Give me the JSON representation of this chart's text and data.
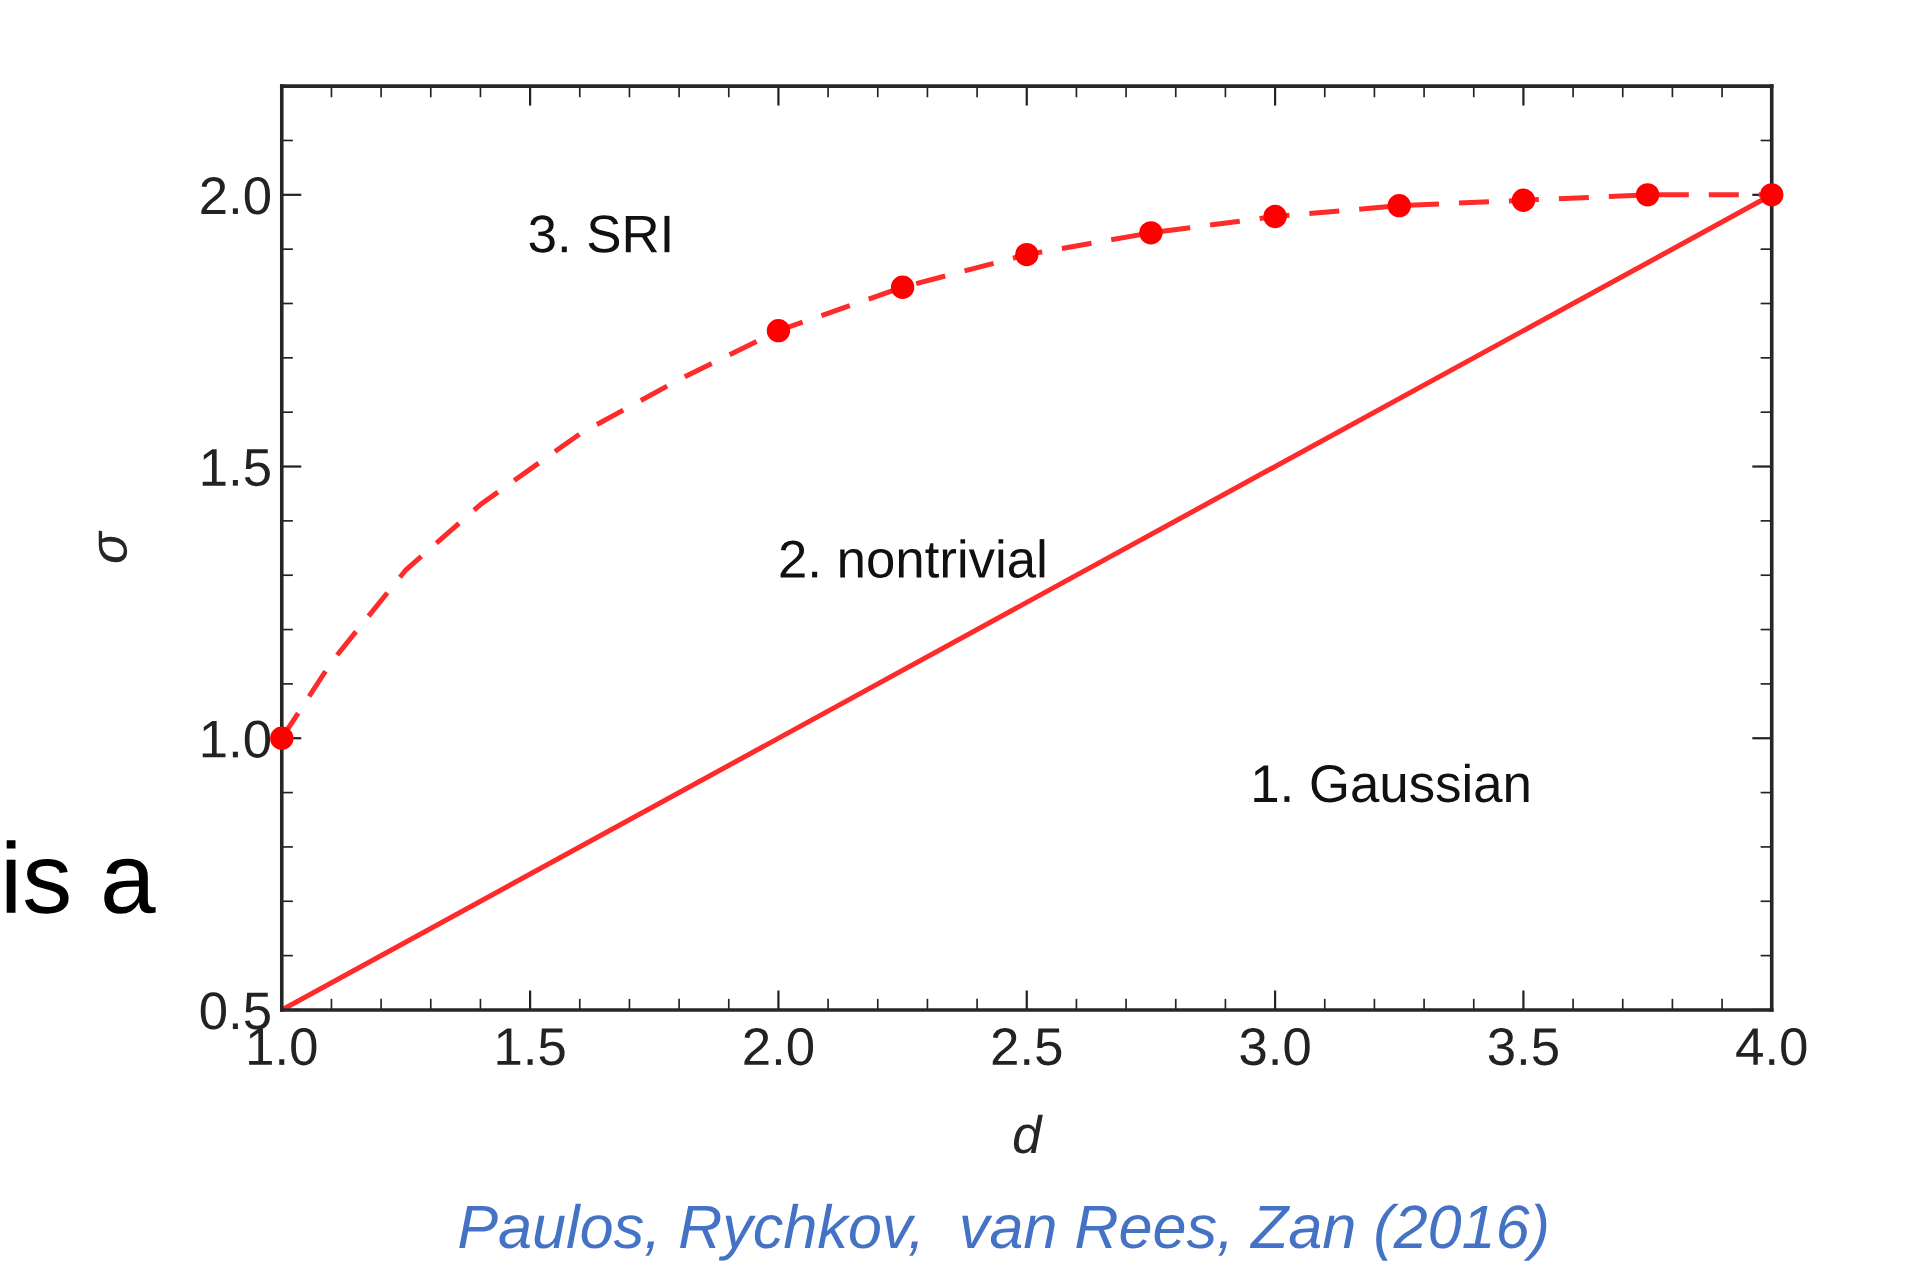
{
  "chart_data": {
    "type": "line",
    "xlabel": "d",
    "ylabel": "σ",
    "xlim": [
      1.0,
      4.0
    ],
    "ylim": [
      0.5,
      2.2
    ],
    "xticks": [
      {
        "value": 1.0,
        "label": "1.0"
      },
      1.5,
      {
        "value": 2.0,
        "label": "2.0"
      },
      2.5,
      {
        "value": 3.0,
        "label": "3.0"
      },
      3.5,
      {
        "value": 4.0,
        "label": "4.0"
      }
    ],
    "yticks": [
      0.5,
      {
        "value": 1.0,
        "label": "1.0"
      },
      1.5,
      {
        "value": 2.0,
        "label": "2.0"
      }
    ],
    "grid": false,
    "legend": false,
    "series": [
      {
        "line_style": "dashed",
        "marker": "none",
        "color": "#ff2a2a",
        "x": [
          1.0,
          1.1,
          1.25,
          1.4,
          1.6,
          1.8,
          2.0,
          2.25,
          2.5,
          2.75,
          3.0,
          3.25,
          3.5,
          3.75,
          4.0
        ],
        "values": [
          1.0,
          1.14,
          1.31,
          1.43,
          1.56,
          1.66,
          1.75,
          1.83,
          1.89,
          1.93,
          1.96,
          1.98,
          1.99,
          2.0,
          2.0
        ]
      },
      {
        "type": "scatter",
        "marker": "circle",
        "color": "#ff0000",
        "x": [
          1.0,
          2.0,
          2.25,
          2.5,
          2.75,
          3.0,
          3.25,
          3.5,
          3.75,
          4.0
        ],
        "values": [
          1.0,
          1.75,
          1.83,
          1.89,
          1.93,
          1.96,
          1.98,
          1.99,
          2.0,
          2.0
        ]
      },
      {
        "type": "line",
        "line_style": "solid",
        "marker": "none",
        "color": "#ff2a2a",
        "x": [
          1.0,
          4.0
        ],
        "values": [
          0.5,
          2.0
        ]
      }
    ],
    "annotations": [
      "3. SRI",
      "2. nontrivial",
      "1. Gaussian",
      "is a",
      "Paulos, Rychkov,  van Rees, Zan (2016)"
    ]
  }
}
